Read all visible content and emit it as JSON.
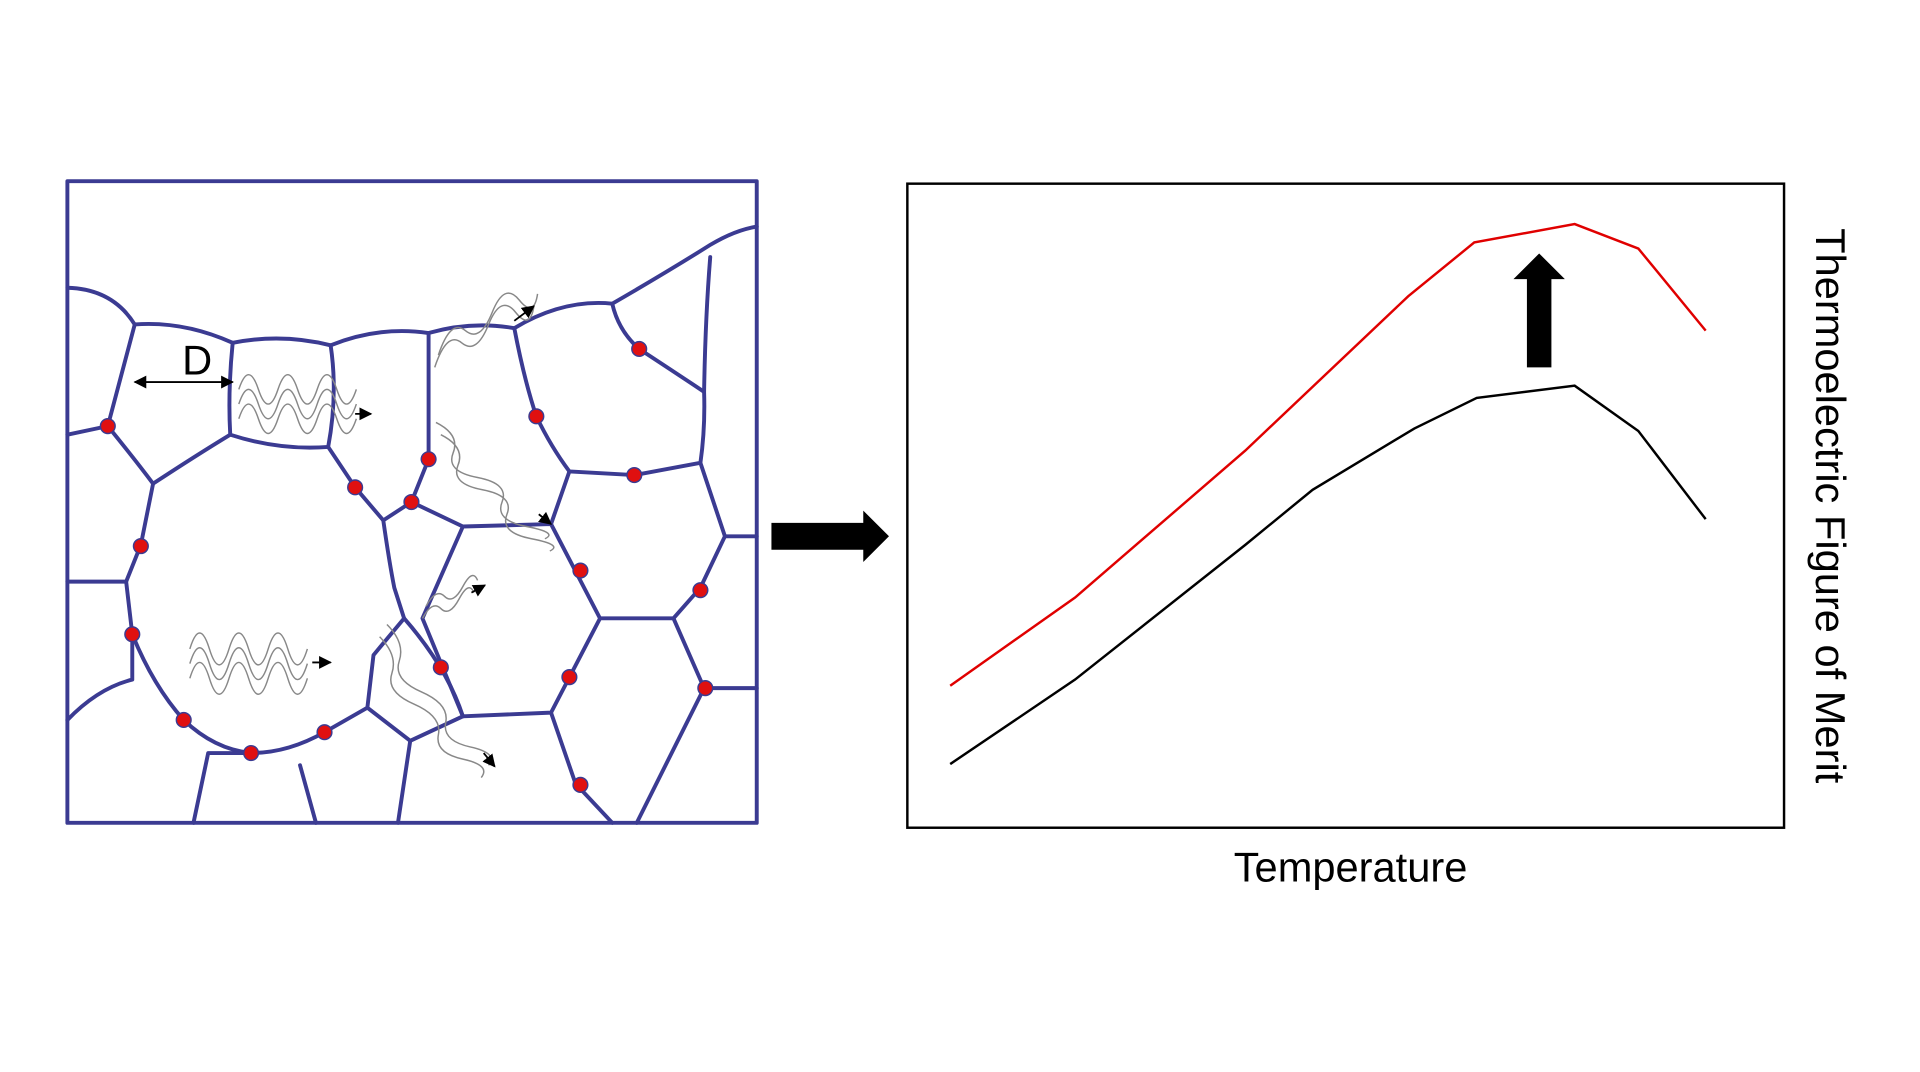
{
  "grain_diagram": {
    "label": "D"
  },
  "plot": {
    "x_label": "Temperature",
    "y_label": "Thermoelectric Figure of Merit"
  }
}
